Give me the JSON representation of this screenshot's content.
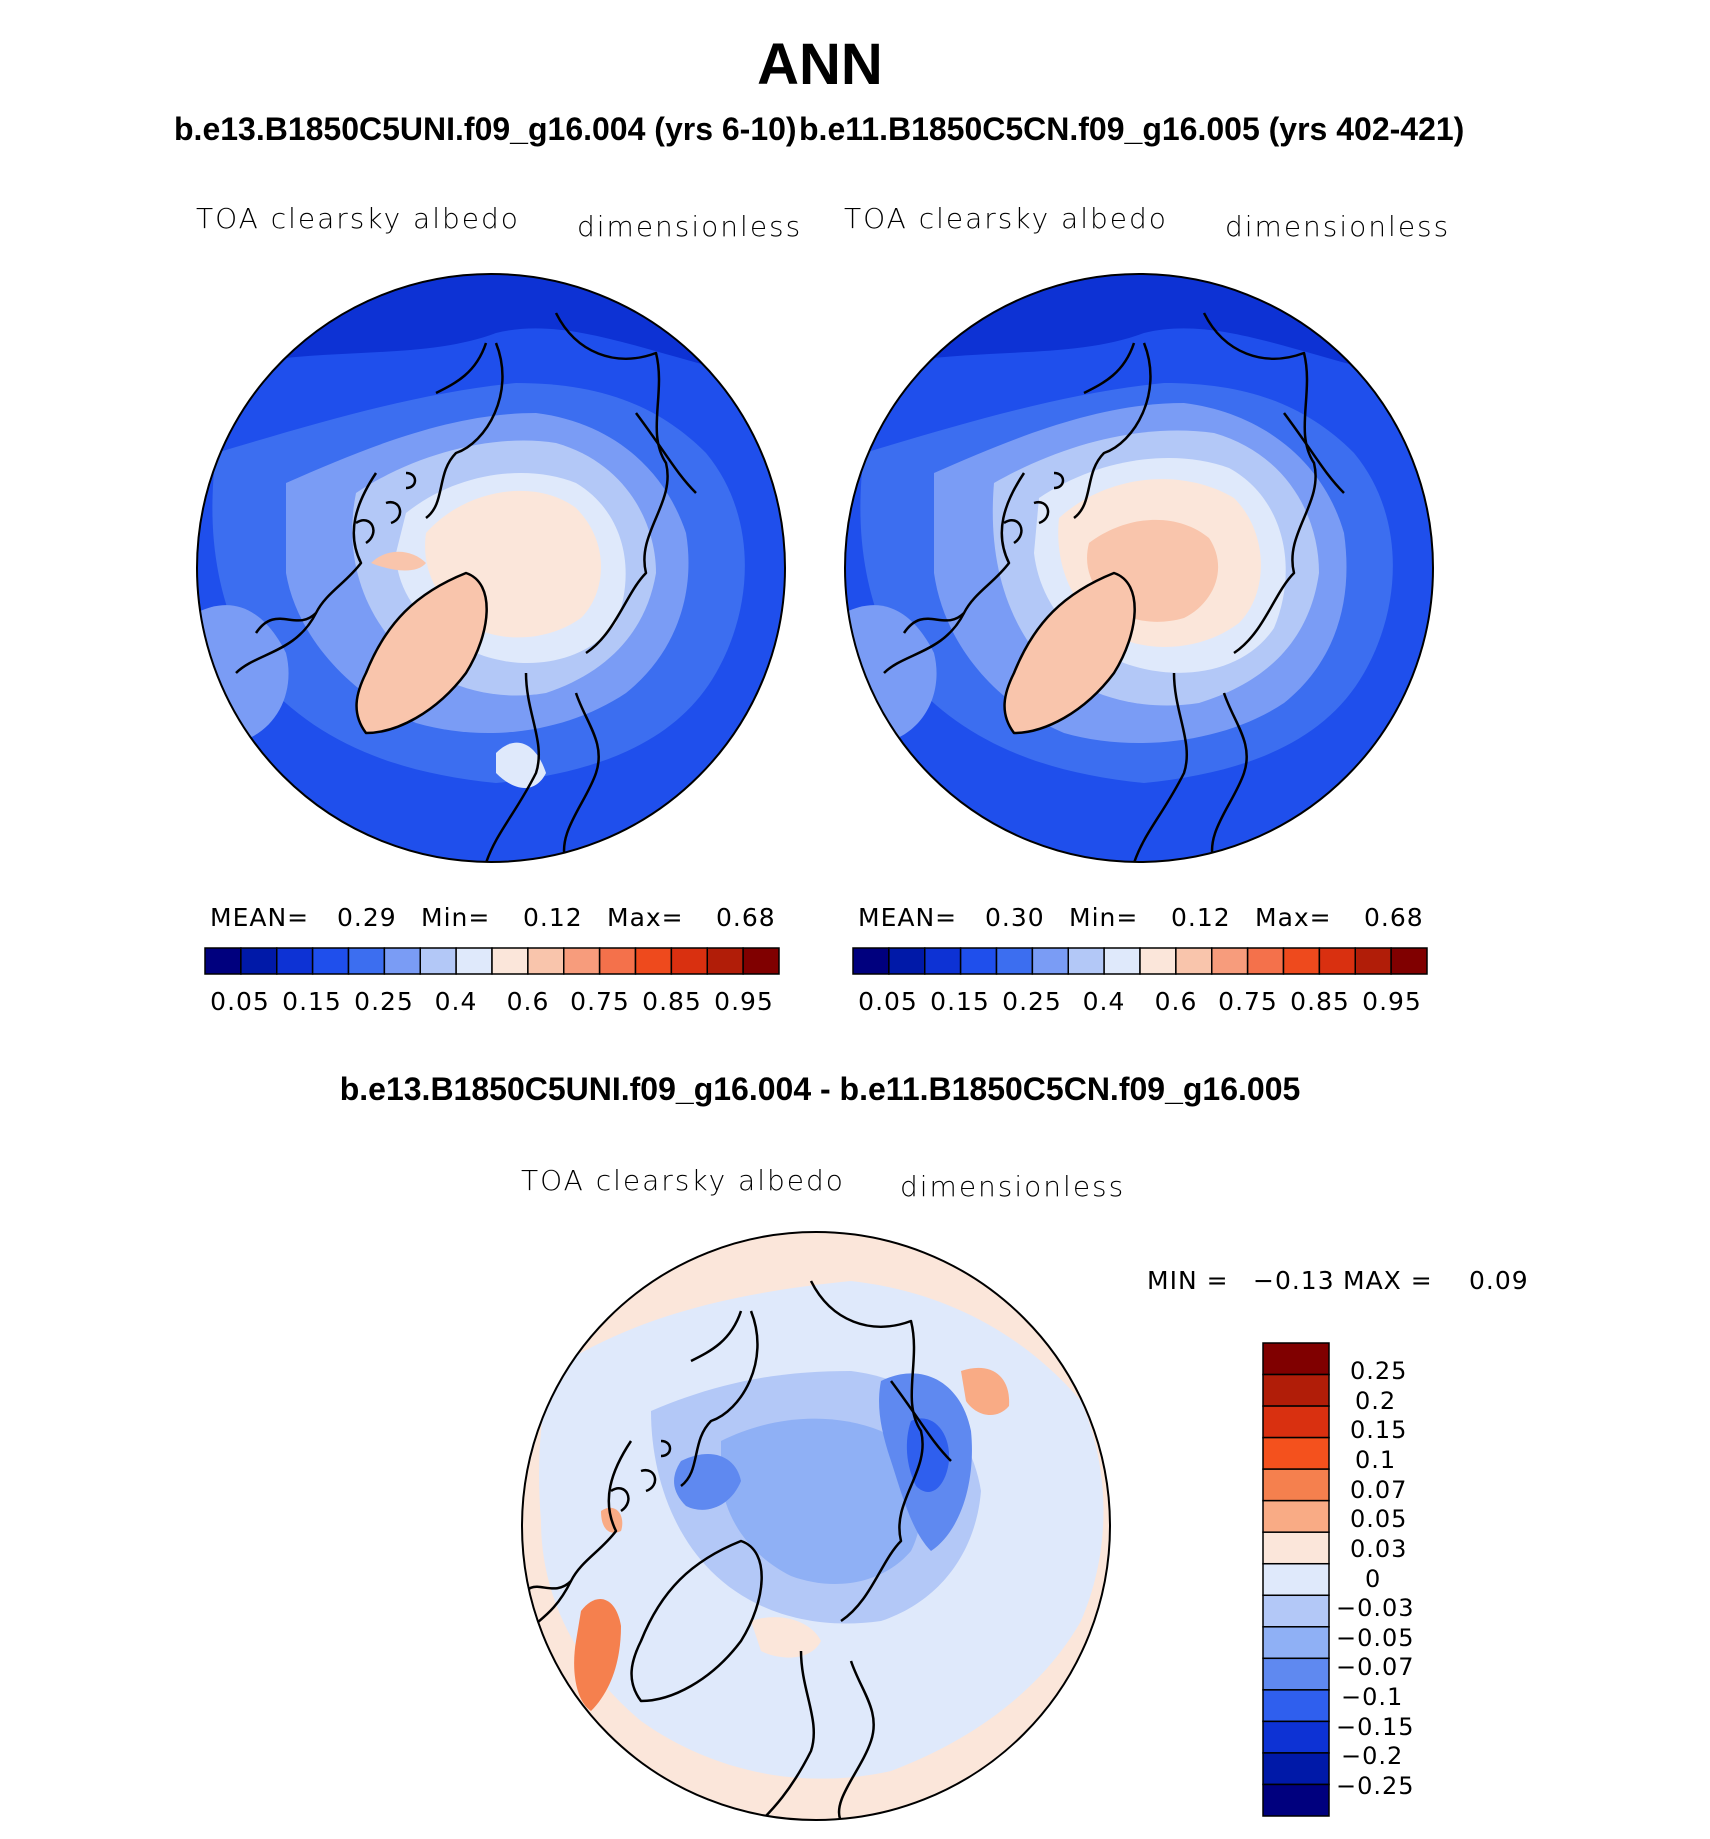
{
  "title": "ANN",
  "panels": [
    {
      "case_title": "b.e13.B1850C5UNI.f09_g16.004 (yrs 6-10)",
      "variable": "TOA clearsky albedo",
      "units": "dimensionless",
      "stats": {
        "mean_label": "MEAN=",
        "mean": "0.29",
        "min_label": "Min=",
        "min": "0.12",
        "max_label": "Max=",
        "max": "0.68"
      }
    },
    {
      "case_title": "b.e11.B1850C5CN.f09_g16.005 (yrs 402-421)",
      "variable": "TOA clearsky albedo",
      "units": "dimensionless",
      "stats": {
        "mean_label": "MEAN=",
        "mean": "0.30",
        "min_label": "Min=",
        "min": "0.12",
        "max_label": "Max=",
        "max": "0.68"
      }
    }
  ],
  "abs_colorbar": {
    "colors": [
      "#00007e",
      "#0019a8",
      "#0d32d4",
      "#1f4fec",
      "#3c6ef0",
      "#7a9cf5",
      "#b3c8f7",
      "#dfe9fb",
      "#fbe6da",
      "#f9c5ac",
      "#f79c7c",
      "#f4714b",
      "#ee4a1d",
      "#d93010",
      "#b11d08",
      "#800000"
    ],
    "tick_labels": [
      "0.05",
      "0.15",
      "0.25",
      "0.4",
      "0.6",
      "0.75",
      "0.85",
      "0.95"
    ]
  },
  "diff": {
    "title": "b.e13.B1850C5UNI.f09_g16.004 - b.e11.B1850C5CN.f09_g16.005",
    "variable": "TOA clearsky albedo",
    "units": "dimensionless",
    "stats": {
      "min_label": "MIN =",
      "min": "−0.13",
      "max_label": "MAX =",
      "max": "0.09"
    },
    "colorbar": {
      "colors_top_to_bottom": [
        "#800000",
        "#b11d08",
        "#d93010",
        "#f4511d",
        "#f5804e",
        "#f9ab85",
        "#fbe6da",
        "#dfe9fb",
        "#b3c8f7",
        "#8fb0f5",
        "#5f89f0",
        "#2f5fee",
        "#0d32d4",
        "#0019a8",
        "#00007e"
      ],
      "labels_top_to_bottom": [
        "0.25",
        "0.2",
        "0.15",
        "0.1",
        "0.07",
        "0.05",
        "0.03",
        "0",
        "−0.03",
        "−0.05",
        "−0.07",
        "−0.1",
        "−0.15",
        "−0.2",
        "−0.25"
      ]
    }
  }
}
